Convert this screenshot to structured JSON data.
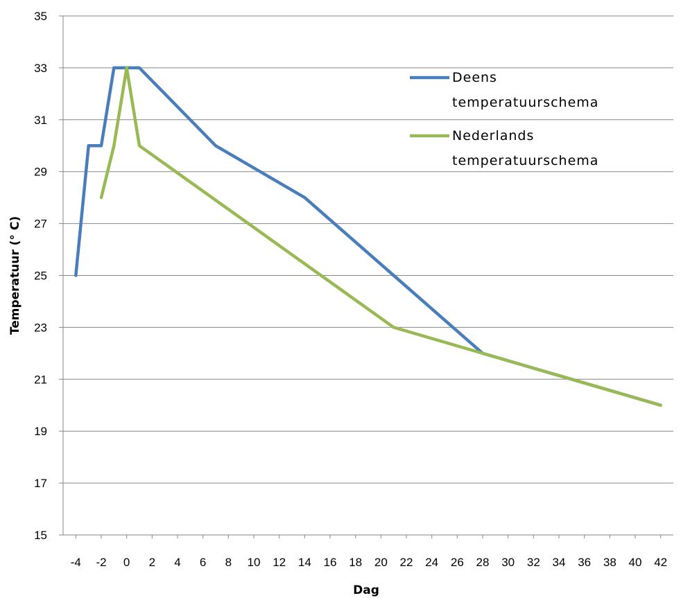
{
  "chart_data": {
    "type": "line",
    "title": "",
    "xlabel": "Dag",
    "ylabel": "Temperatuur (° C)",
    "xlim": [
      -5,
      43
    ],
    "ylim": [
      15,
      35
    ],
    "x_ticks": [
      -4,
      -2,
      0,
      2,
      4,
      6,
      8,
      10,
      12,
      14,
      16,
      18,
      20,
      22,
      24,
      26,
      28,
      30,
      32,
      34,
      36,
      38,
      40,
      42
    ],
    "y_ticks": [
      15,
      17,
      19,
      21,
      23,
      25,
      27,
      29,
      31,
      33,
      35
    ],
    "grid": "horizontal",
    "legend_position": "top-right",
    "series": [
      {
        "name": "Deens temperatuurschema",
        "legend_lines": [
          "Deens",
          "temperatuurschema"
        ],
        "color": "#4a7ebb",
        "points": [
          [
            -4,
            25
          ],
          [
            -3,
            30
          ],
          [
            -2,
            30
          ],
          [
            -1,
            33
          ],
          [
            1,
            33
          ],
          [
            7,
            30
          ],
          [
            14,
            28
          ],
          [
            21,
            25
          ],
          [
            28,
            22
          ],
          [
            42,
            20
          ]
        ]
      },
      {
        "name": "Nederlands temperatuurschema",
        "legend_lines": [
          "Nederlands",
          "temperatuurschema"
        ],
        "color": "#98b954",
        "points": [
          [
            -2,
            28
          ],
          [
            -1,
            30
          ],
          [
            0,
            33
          ],
          [
            1,
            30
          ],
          [
            21,
            23
          ],
          [
            28,
            22
          ],
          [
            42,
            20
          ]
        ]
      }
    ]
  }
}
